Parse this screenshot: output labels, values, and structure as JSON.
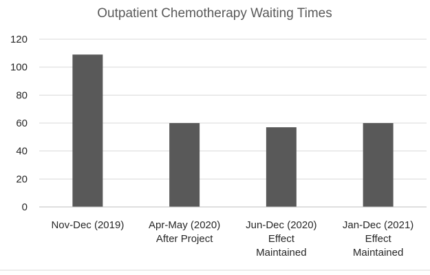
{
  "chart_data": {
    "type": "bar",
    "title": "Outpatient Chemotherapy Waiting Times",
    "xlabel": "",
    "ylabel": "",
    "categories": [
      [
        "Nov-Dec (2019)"
      ],
      [
        "Apr-May (2020)",
        "After Project"
      ],
      [
        "Jun-Dec (2020)",
        "Effect",
        "Maintained"
      ],
      [
        "Jan-Dec (2021)",
        "Effect",
        "Maintained"
      ]
    ],
    "values": [
      109,
      60,
      57,
      60
    ],
    "ylim": [
      0,
      120
    ],
    "yticks": [
      0,
      20,
      40,
      60,
      80,
      100,
      120
    ],
    "grid": true,
    "legend": "none",
    "bar_color": "#595959"
  }
}
